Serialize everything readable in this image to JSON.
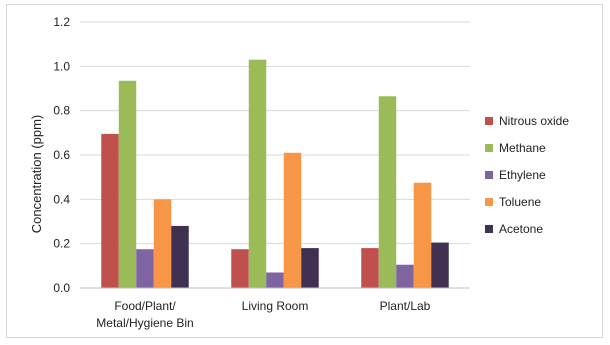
{
  "chart_data": {
    "type": "bar",
    "title": "",
    "xlabel": "",
    "ylabel": "Concentration (ppm)",
    "ylim": [
      0,
      1.2
    ],
    "yticks": [
      "0.0",
      "0.2",
      "0.4",
      "0.6",
      "0.8",
      "1.0",
      "1.2"
    ],
    "grid": "horizontal",
    "legend_position": "right",
    "categories": [
      [
        "Food/Plant/",
        "Metal/Hygiene Bin"
      ],
      [
        "Living Room"
      ],
      [
        "Plant/Lab"
      ]
    ],
    "series": [
      {
        "name": "Nitrous oxide",
        "color": "#c0504d",
        "values": [
          0.695,
          0.175,
          0.18
        ]
      },
      {
        "name": "Methane",
        "color": "#9bbb59",
        "values": [
          0.935,
          1.03,
          0.865
        ]
      },
      {
        "name": "Ethylene",
        "color": "#8064a2",
        "values": [
          0.175,
          0.07,
          0.105
        ]
      },
      {
        "name": "Toluene",
        "color": "#f79646",
        "values": [
          0.4,
          0.61,
          0.475
        ]
      },
      {
        "name": "Acetone",
        "color": "#403152",
        "values": [
          0.28,
          0.18,
          0.205
        ]
      }
    ]
  }
}
